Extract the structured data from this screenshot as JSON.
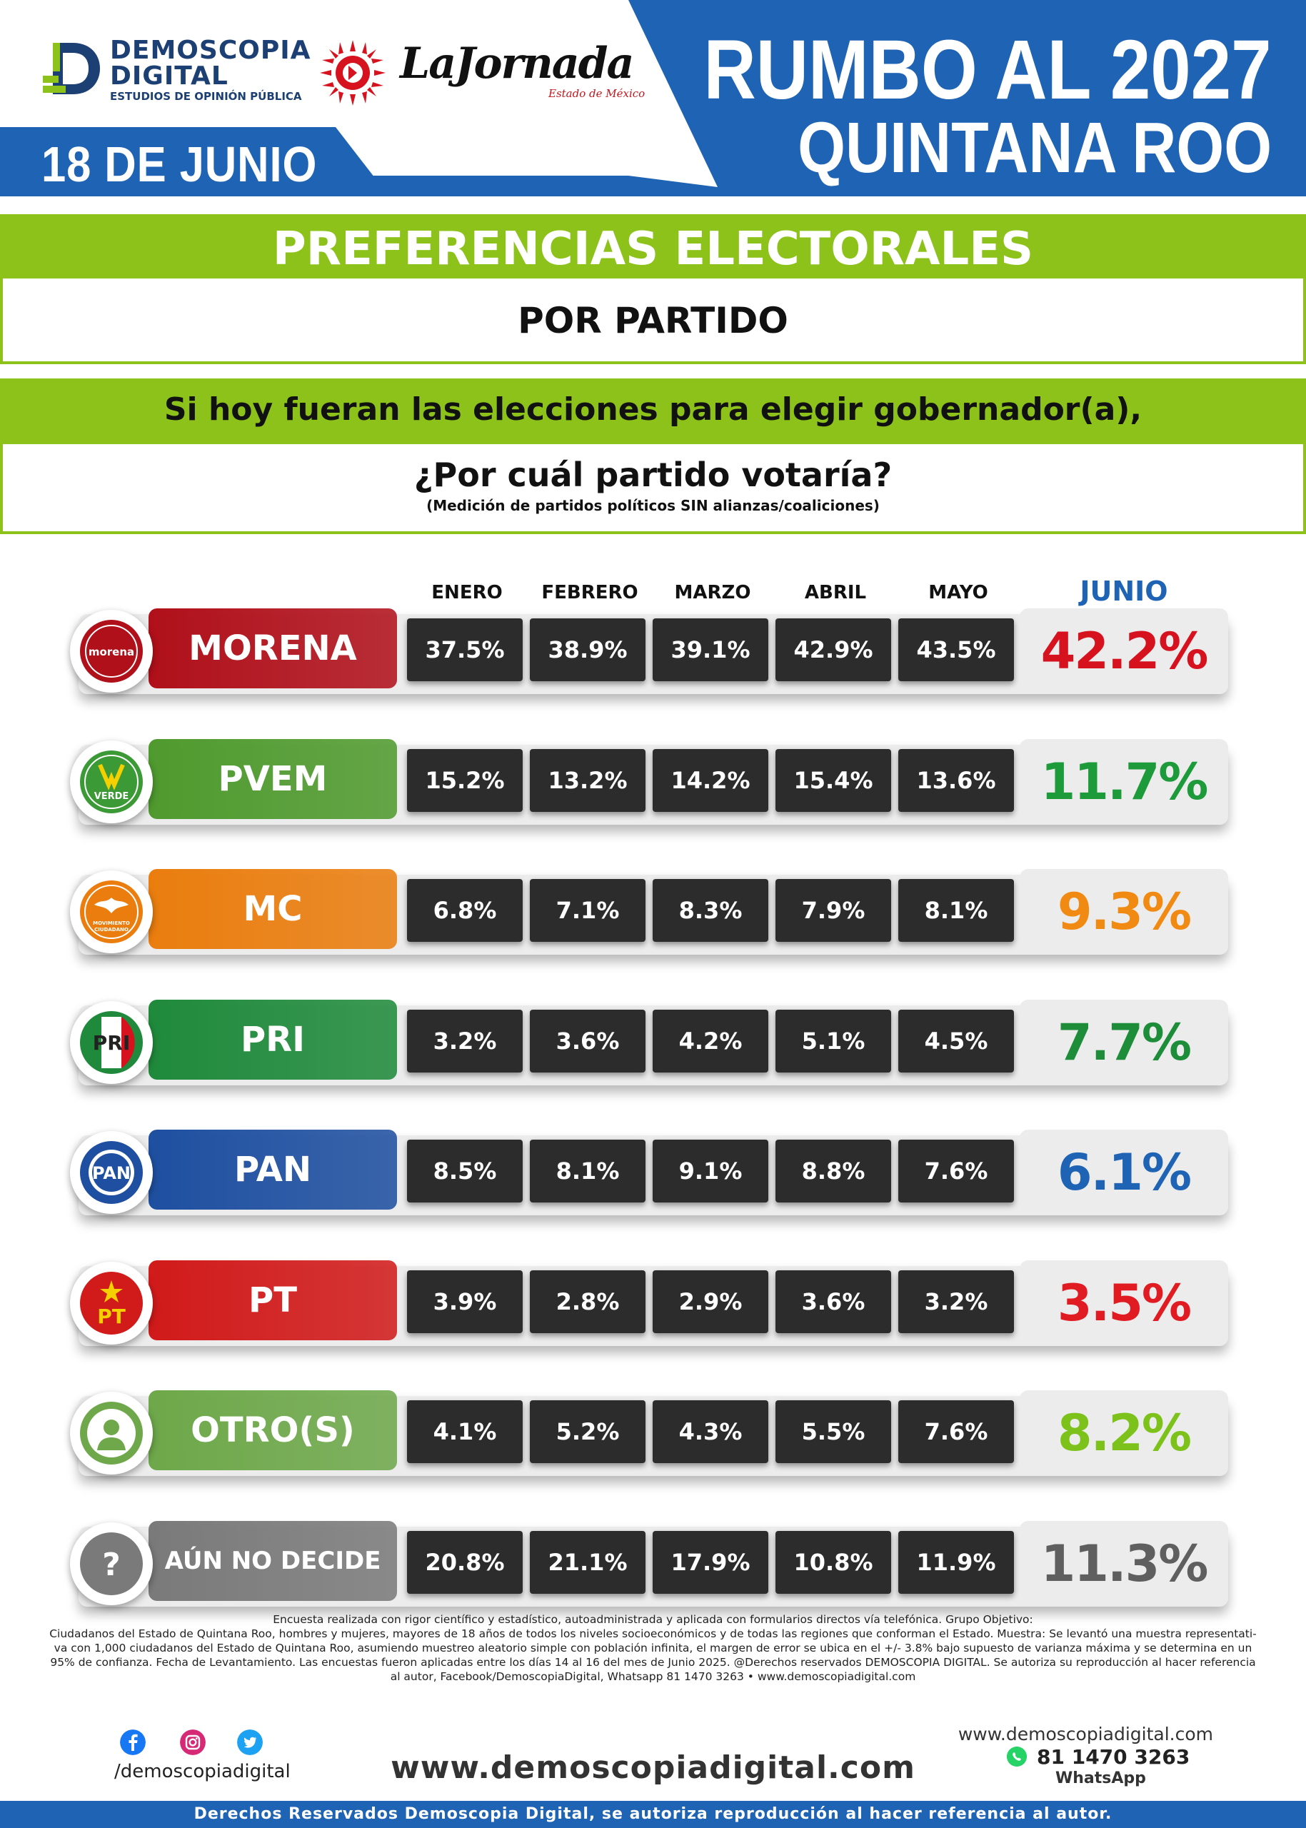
{
  "header": {
    "brand_name_1": "DEMOSCOPIA",
    "brand_name_2": "DIGITAL",
    "brand_tagline": "ESTUDIOS DE OPINIÓN PÚBLICA",
    "partner_name": "LaJornada",
    "partner_sub": "Estado de México",
    "date": "18 DE JUNIO",
    "title_line1": "RUMBO AL 2027",
    "title_line2": "QUINTANA ROO",
    "accent_color": "#1f63b5",
    "green_color": "#8cc21a"
  },
  "banner": {
    "title": "PREFERENCIAS ELECTORALES",
    "subtitle": "POR PARTIDO",
    "question_1": "Si hoy fueran las elecciones para elegir gobernador(a),",
    "question_2": "¿Por cuál partido votaría?",
    "question_note": "(Medición de partidos políticos SIN alianzas/coaliciones)"
  },
  "chart_data": {
    "type": "table",
    "columns": [
      "ENERO",
      "FEBRERO",
      "MARZO",
      "ABRIL",
      "MAYO",
      "JUNIO"
    ],
    "rows": [
      {
        "party": "MORENA",
        "icon": "morena-logo-icon",
        "icon_text": "morena",
        "color": "#b0101a",
        "junio_color": "#d6121f",
        "values": [
          "37.5%",
          "38.9%",
          "39.1%",
          "42.9%",
          "43.5%"
        ],
        "junio": "42.2%"
      },
      {
        "party": "PVEM",
        "icon": "pvem-logo-icon",
        "icon_text": "VERDE",
        "color": "#4f9a2e",
        "junio_color": "#1d9a3a",
        "values": [
          "15.2%",
          "13.2%",
          "14.2%",
          "15.4%",
          "13.6%"
        ],
        "junio": "11.7%"
      },
      {
        "party": "MC",
        "icon": "mc-logo-icon",
        "icon_text": "MOVIMIENTO CIUDADANO",
        "color": "#ea7d0e",
        "junio_color": "#f08a12",
        "values": [
          "6.8%",
          "7.1%",
          "8.3%",
          "7.9%",
          "8.1%"
        ],
        "junio": "9.3%"
      },
      {
        "party": "PRI",
        "icon": "pri-logo-icon",
        "icon_text": "PRI",
        "color": "#1f8a3b",
        "junio_color": "#1d8d3a",
        "values": [
          "3.2%",
          "3.6%",
          "4.2%",
          "5.1%",
          "4.5%"
        ],
        "junio": "7.7%"
      },
      {
        "party": "PAN",
        "icon": "pan-logo-icon",
        "icon_text": "PAN",
        "color": "#1e4fa0",
        "junio_color": "#1f63b5",
        "values": [
          "8.5%",
          "8.1%",
          "9.1%",
          "8.8%",
          "7.6%"
        ],
        "junio": "6.1%"
      },
      {
        "party": "PT",
        "icon": "pt-logo-icon",
        "icon_text": "PT",
        "color": "#d11a1a",
        "junio_color": "#e01b22",
        "values": [
          "3.9%",
          "2.8%",
          "2.9%",
          "3.6%",
          "3.2%"
        ],
        "junio": "3.5%"
      },
      {
        "party": "OTRO(S)",
        "icon": "person-icon",
        "color": "#6ea84a",
        "junio_color": "#7cc21a",
        "values": [
          "4.1%",
          "5.2%",
          "4.3%",
          "5.5%",
          "7.6%"
        ],
        "junio": "8.2%"
      },
      {
        "party": "AÚN NO DECIDE",
        "icon": "question-icon",
        "icon_text": "?",
        "color": "#7a7a7a",
        "junio_color": "#5f5f5f",
        "values": [
          "20.8%",
          "21.1%",
          "17.9%",
          "10.8%",
          "11.9%"
        ],
        "junio": "11.3%"
      }
    ]
  },
  "footer": {
    "methodology_1": "Encuesta realizada con rigor científico y estadístico, autoadministrada y aplicada con formularios directos vía telefónica. Grupo Objetivo:",
    "methodology_2": "Ciudadanos del Estado de Quintana Roo, hombres y mujeres, mayores de 18 años de todos los niveles socioeconómicos y de todas las regiones que conforman el Estado. Muestra: Se levantó una muestra representati-",
    "methodology_3": "va con 1,000 ciudadanos del Estado de Quintana Roo, asumiendo muestreo aleatorio simple con población infinita, el margen de error se ubica en el +/- 3.8% bajo supuesto de varianza máxima y se determina en un",
    "methodology_4": "95% de confianza. Fecha de Levantamiento. Las encuestas fueron aplicadas entre los días 14 al 16 del mes de Junio 2025. @Derechos reservados DEMOSCOPIA DIGITAL. Se autoriza su reproducción al hacer referencia",
    "methodology_5": "al autor, Facebook/DemoscopiaDigital, Whatsapp 81 1470 3263 • www.demoscopiadigital.com",
    "social_handle": "/demoscopiadigital",
    "website_center": "www.demoscopiadigital.com",
    "website_right": "www.demoscopiadigital.com",
    "phone": "81 1470 3263",
    "whatsapp_label": "WhatsApp",
    "rights": "Derechos Reservados Demoscopia Digital, se autoriza reproducción al hacer referencia al autor."
  }
}
